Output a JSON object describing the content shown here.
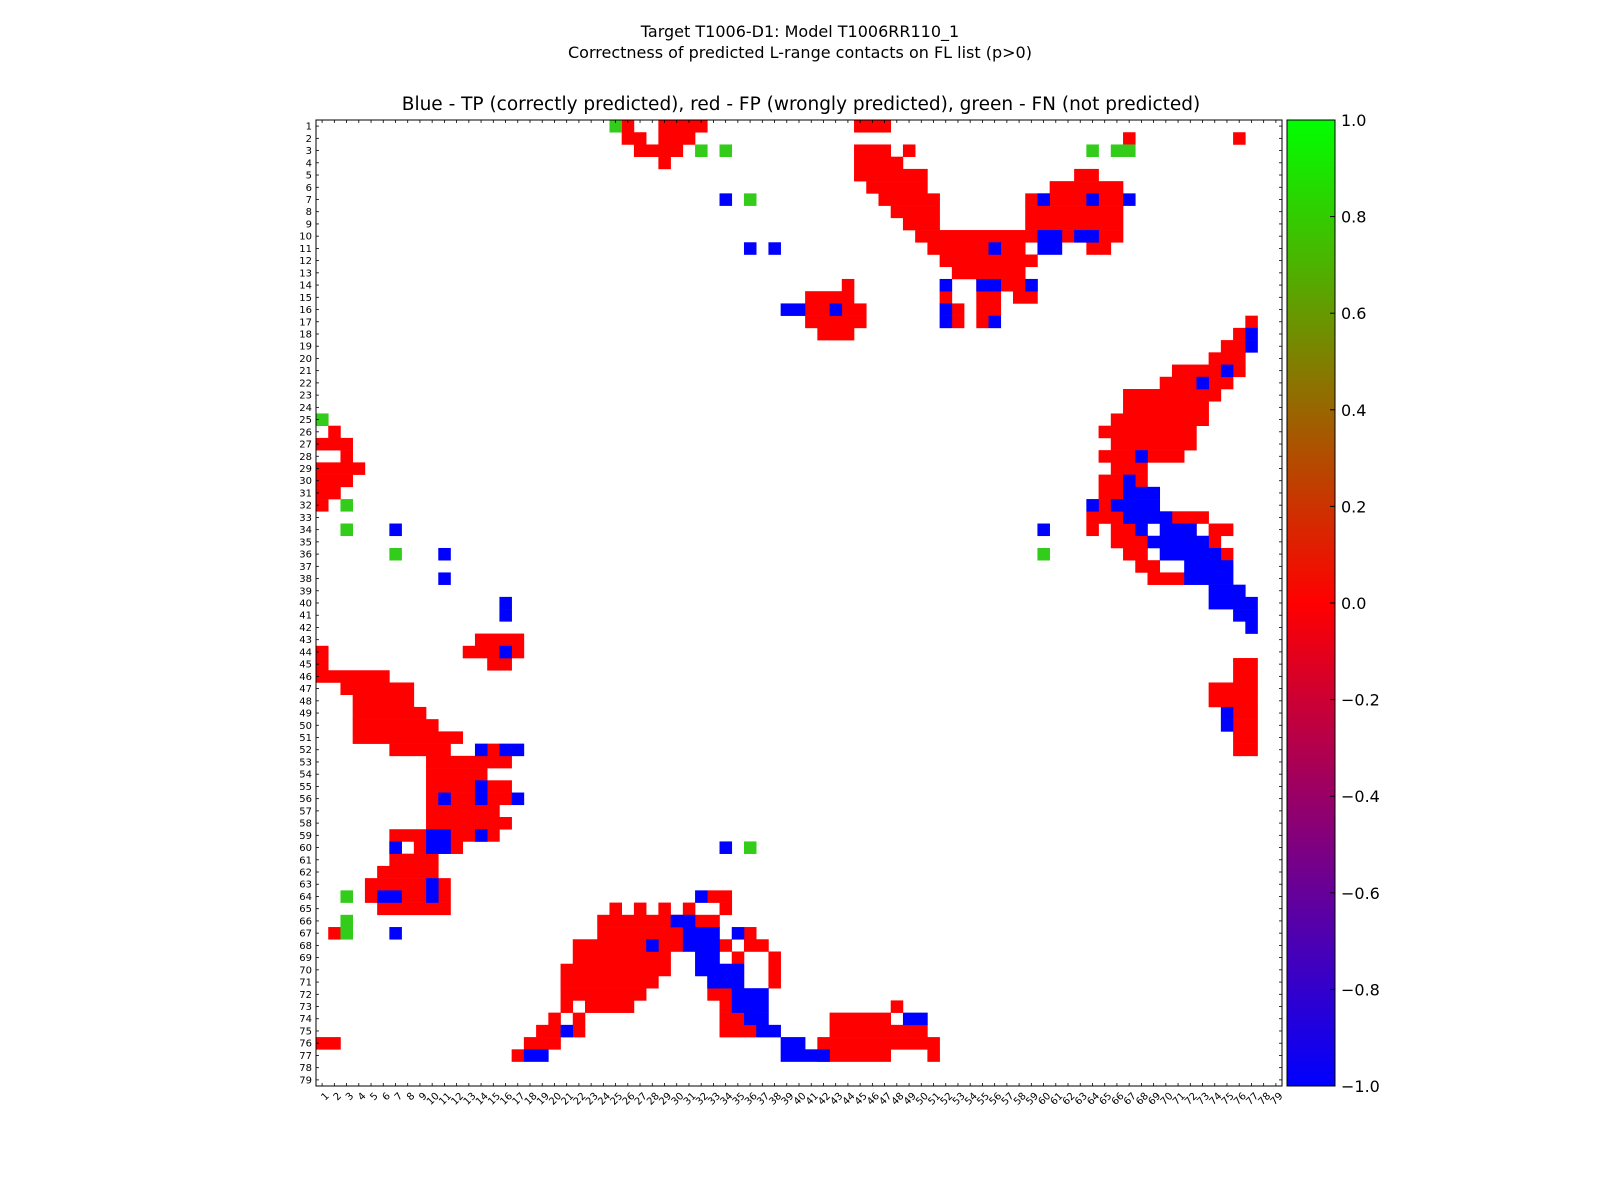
{
  "header": {
    "title_line1": "Target T1006-D1: Model T1006RR110_1",
    "title_line2": "Correctness of predicted L-range contacts on FL list (p>0)",
    "subtitle": "Blue - TP (correctly predicted), red - FP (wrongly predicted), green - FN (not predicted)"
  },
  "chart_data": {
    "type": "heatmap",
    "n": 79,
    "x_ticks": "1..79",
    "y_ticks": "1..79",
    "colorbar": {
      "min": -1.0,
      "max": 1.0,
      "ticks": [
        "1.0",
        "0.8",
        "0.6",
        "0.4",
        "0.2",
        "0.0",
        "−0.2",
        "−0.4",
        "−0.6",
        "−0.8",
        "−1.0"
      ],
      "colors": [
        "#0000ff",
        "#ff0000",
        "#00ff00"
      ]
    },
    "legend": {
      "blue": "TP (correctly predicted)",
      "red": "FP (wrongly predicted)",
      "green": "FN (not predicted)"
    },
    "red_runs": [
      [
        1,
        26,
        1
      ],
      [
        1,
        29,
        4
      ],
      [
        1,
        45,
        3
      ],
      [
        2,
        26,
        2
      ],
      [
        2,
        29,
        3
      ],
      [
        2,
        67,
        1
      ],
      [
        2,
        76,
        1
      ],
      [
        3,
        27,
        4
      ],
      [
        3,
        45,
        3
      ],
      [
        3,
        49,
        1
      ],
      [
        4,
        29,
        1
      ],
      [
        4,
        45,
        4
      ],
      [
        5,
        45,
        6
      ],
      [
        5,
        63,
        2
      ],
      [
        6,
        46,
        5
      ],
      [
        6,
        61,
        6
      ],
      [
        7,
        47,
        5
      ],
      [
        7,
        59,
        8
      ],
      [
        8,
        48,
        4
      ],
      [
        8,
        59,
        8
      ],
      [
        9,
        49,
        3
      ],
      [
        9,
        59,
        8
      ],
      [
        10,
        50,
        9
      ],
      [
        10,
        59,
        8
      ],
      [
        11,
        51,
        8
      ],
      [
        11,
        64,
        2
      ],
      [
        12,
        52,
        8
      ],
      [
        13,
        53,
        6
      ],
      [
        14,
        44,
        1
      ],
      [
        14,
        55,
        5
      ],
      [
        15,
        41,
        4
      ],
      [
        15,
        52,
        1
      ],
      [
        15,
        55,
        2
      ],
      [
        15,
        58,
        2
      ],
      [
        16,
        41,
        5
      ],
      [
        16,
        53,
        1
      ],
      [
        16,
        55,
        2
      ],
      [
        17,
        41,
        5
      ],
      [
        17,
        53,
        1
      ],
      [
        17,
        55,
        1
      ],
      [
        17,
        77,
        1
      ],
      [
        18,
        42,
        3
      ],
      [
        18,
        76,
        1
      ],
      [
        19,
        75,
        2
      ],
      [
        20,
        74,
        3
      ],
      [
        21,
        71,
        6
      ],
      [
        22,
        70,
        6
      ],
      [
        23,
        67,
        8
      ],
      [
        24,
        67,
        7
      ],
      [
        25,
        1,
        1
      ],
      [
        25,
        66,
        8
      ],
      [
        26,
        2,
        1
      ],
      [
        26,
        65,
        8
      ],
      [
        27,
        1,
        2
      ],
      [
        27,
        3,
        1
      ],
      [
        27,
        66,
        7
      ],
      [
        28,
        3,
        1
      ],
      [
        28,
        65,
        3
      ],
      [
        28,
        69,
        3
      ],
      [
        29,
        1,
        4
      ],
      [
        29,
        66,
        3
      ],
      [
        30,
        1,
        3
      ],
      [
        30,
        65,
        4
      ],
      [
        31,
        1,
        2
      ],
      [
        31,
        65,
        3
      ],
      [
        32,
        1,
        1
      ],
      [
        32,
        65,
        2
      ],
      [
        33,
        64,
        3
      ],
      [
        33,
        71,
        3
      ],
      [
        34,
        64,
        1
      ],
      [
        34,
        66,
        2
      ],
      [
        34,
        71,
        2
      ],
      [
        34,
        74,
        2
      ],
      [
        35,
        66,
        3
      ],
      [
        35,
        74,
        1
      ],
      [
        36,
        67,
        2
      ],
      [
        36,
        73,
        3
      ],
      [
        37,
        68,
        2
      ],
      [
        38,
        69,
        3
      ],
      [
        43,
        14,
        4
      ],
      [
        44,
        1,
        1
      ],
      [
        44,
        13,
        3
      ],
      [
        44,
        16,
        2
      ],
      [
        45,
        1,
        1
      ],
      [
        45,
        15,
        2
      ],
      [
        45,
        76,
        2
      ],
      [
        46,
        1,
        6
      ],
      [
        46,
        76,
        2
      ],
      [
        47,
        3,
        6
      ],
      [
        47,
        74,
        4
      ],
      [
        48,
        4,
        5
      ],
      [
        48,
        74,
        4
      ],
      [
        49,
        4,
        6
      ],
      [
        49,
        76,
        2
      ],
      [
        50,
        4,
        7
      ],
      [
        50,
        76,
        2
      ],
      [
        51,
        4,
        9
      ],
      [
        51,
        76,
        2
      ],
      [
        52,
        7,
        5
      ],
      [
        52,
        15,
        1
      ],
      [
        52,
        76,
        2
      ],
      [
        53,
        10,
        3
      ],
      [
        53,
        13,
        4
      ],
      [
        54,
        10,
        5
      ],
      [
        55,
        10,
        4
      ],
      [
        55,
        15,
        2
      ],
      [
        56,
        10,
        1
      ],
      [
        56,
        12,
        2
      ],
      [
        56,
        15,
        2
      ],
      [
        57,
        10,
        6
      ],
      [
        58,
        10,
        7
      ],
      [
        59,
        7,
        3
      ],
      [
        59,
        12,
        3
      ],
      [
        59,
        15,
        1
      ],
      [
        60,
        7,
        1
      ],
      [
        60,
        9,
        2
      ],
      [
        60,
        12,
        1
      ],
      [
        61,
        7,
        4
      ],
      [
        62,
        6,
        5
      ],
      [
        63,
        5,
        5
      ],
      [
        63,
        11,
        1
      ],
      [
        64,
        5,
        1
      ],
      [
        64,
        8,
        2
      ],
      [
        64,
        11,
        1
      ],
      [
        64,
        33,
        2
      ],
      [
        65,
        6,
        6
      ],
      [
        65,
        25,
        1
      ],
      [
        65,
        27,
        1
      ],
      [
        65,
        29,
        1
      ],
      [
        65,
        31,
        1
      ],
      [
        65,
        34,
        1
      ],
      [
        66,
        24,
        5
      ],
      [
        66,
        29,
        5
      ],
      [
        67,
        2,
        1
      ],
      [
        67,
        24,
        7
      ],
      [
        67,
        31,
        1
      ],
      [
        67,
        36,
        1
      ],
      [
        68,
        22,
        6
      ],
      [
        68,
        29,
        2
      ],
      [
        68,
        34,
        1
      ],
      [
        68,
        36,
        2
      ],
      [
        69,
        22,
        8
      ],
      [
        69,
        35,
        1
      ],
      [
        69,
        38,
        1
      ],
      [
        70,
        21,
        9
      ],
      [
        70,
        38,
        1
      ],
      [
        71,
        21,
        8
      ],
      [
        71,
        33,
        1
      ],
      [
        71,
        38,
        1
      ],
      [
        72,
        21,
        7
      ],
      [
        72,
        33,
        2
      ],
      [
        73,
        21,
        1
      ],
      [
        73,
        23,
        3
      ],
      [
        73,
        26,
        1
      ],
      [
        73,
        34,
        1
      ],
      [
        73,
        48,
        1
      ],
      [
        74,
        20,
        1
      ],
      [
        74,
        22,
        1
      ],
      [
        74,
        34,
        3
      ],
      [
        74,
        43,
        4
      ],
      [
        74,
        47,
        1
      ],
      [
        75,
        19,
        2
      ],
      [
        75,
        22,
        1
      ],
      [
        75,
        34,
        3
      ],
      [
        75,
        43,
        8
      ],
      [
        76,
        1,
        2
      ],
      [
        76,
        18,
        3
      ],
      [
        76,
        42,
        10
      ],
      [
        77,
        17,
        1
      ],
      [
        77,
        42,
        6
      ],
      [
        77,
        51,
        1
      ]
    ],
    "blue_runs": [
      [
        7,
        34,
        1
      ],
      [
        7,
        60,
        1
      ],
      [
        7,
        64,
        1
      ],
      [
        7,
        67,
        1
      ],
      [
        10,
        60,
        2
      ],
      [
        10,
        63,
        2
      ],
      [
        11,
        36,
        1
      ],
      [
        11,
        38,
        1
      ],
      [
        11,
        56,
        1
      ],
      [
        11,
        60,
        2
      ],
      [
        14,
        52,
        1
      ],
      [
        14,
        55,
        2
      ],
      [
        14,
        59,
        1
      ],
      [
        16,
        39,
        2
      ],
      [
        16,
        43,
        1
      ],
      [
        16,
        52,
        1
      ],
      [
        17,
        52,
        1
      ],
      [
        17,
        56,
        1
      ],
      [
        18,
        77,
        1
      ],
      [
        19,
        77,
        1
      ],
      [
        21,
        75,
        1
      ],
      [
        22,
        73,
        1
      ],
      [
        28,
        68,
        1
      ],
      [
        30,
        67,
        1
      ],
      [
        31,
        67,
        3
      ],
      [
        32,
        64,
        1
      ],
      [
        32,
        66,
        4
      ],
      [
        33,
        67,
        4
      ],
      [
        34,
        7,
        1
      ],
      [
        34,
        60,
        1
      ],
      [
        34,
        68,
        1
      ],
      [
        34,
        70,
        3
      ],
      [
        35,
        69,
        4
      ],
      [
        35,
        73,
        1
      ],
      [
        36,
        11,
        1
      ],
      [
        36,
        70,
        5
      ],
      [
        37,
        72,
        4
      ],
      [
        38,
        11,
        1
      ],
      [
        38,
        72,
        4
      ],
      [
        39,
        74,
        3
      ],
      [
        40,
        16,
        1
      ],
      [
        40,
        74,
        4
      ],
      [
        41,
        16,
        1
      ],
      [
        41,
        76,
        2
      ],
      [
        42,
        77,
        1
      ],
      [
        44,
        16,
        1
      ],
      [
        49,
        75,
        1
      ],
      [
        50,
        75,
        1
      ],
      [
        52,
        14,
        1
      ],
      [
        52,
        16,
        2
      ],
      [
        55,
        14,
        1
      ],
      [
        56,
        11,
        1
      ],
      [
        56,
        14,
        1
      ],
      [
        56,
        17,
        1
      ],
      [
        59,
        10,
        2
      ],
      [
        59,
        14,
        1
      ],
      [
        60,
        7,
        1
      ],
      [
        60,
        10,
        2
      ],
      [
        60,
        34,
        1
      ],
      [
        63,
        10,
        1
      ],
      [
        64,
        6,
        2
      ],
      [
        64,
        10,
        1
      ],
      [
        64,
        32,
        1
      ],
      [
        66,
        30,
        2
      ],
      [
        67,
        7,
        1
      ],
      [
        67,
        31,
        3
      ],
      [
        67,
        35,
        1
      ],
      [
        68,
        28,
        1
      ],
      [
        68,
        31,
        3
      ],
      [
        69,
        32,
        2
      ],
      [
        70,
        32,
        4
      ],
      [
        71,
        33,
        3
      ],
      [
        72,
        35,
        3
      ],
      [
        73,
        35,
        3
      ],
      [
        74,
        36,
        2
      ],
      [
        74,
        49,
        2
      ],
      [
        75,
        37,
        2
      ],
      [
        75,
        21,
        1
      ],
      [
        76,
        39,
        2
      ],
      [
        77,
        18,
        2
      ],
      [
        77,
        39,
        4
      ]
    ],
    "green_runs": [
      [
        1,
        25,
        1
      ],
      [
        3,
        32,
        1
      ],
      [
        3,
        34,
        1
      ],
      [
        3,
        64,
        1
      ],
      [
        3,
        66,
        2
      ],
      [
        7,
        36,
        1
      ],
      [
        25,
        1,
        1
      ],
      [
        32,
        3,
        1
      ],
      [
        34,
        3,
        1
      ],
      [
        36,
        7,
        1
      ],
      [
        36,
        60,
        1
      ],
      [
        60,
        36,
        1
      ],
      [
        64,
        3,
        1
      ],
      [
        66,
        3,
        1
      ],
      [
        67,
        3,
        1
      ]
    ]
  }
}
